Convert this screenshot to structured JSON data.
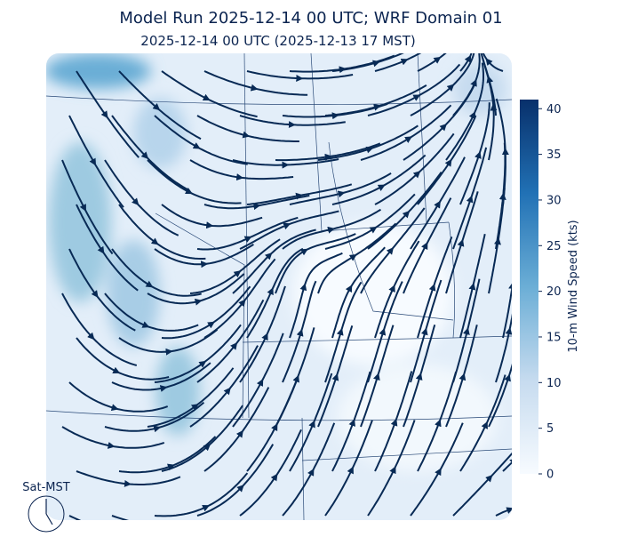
{
  "title": "Model Run 2025-12-14 00 UTC; WRF Domain 01",
  "subtitle": "2025-12-14 00 UTC  (2025-12-13 17 MST)",
  "colorbar": {
    "label": "10-m Wind Speed (kts)",
    "lim": [
      0,
      41
    ],
    "ticks": [
      0,
      5,
      10,
      15,
      20,
      25,
      30,
      35,
      40
    ]
  },
  "clock": {
    "label": "Sat-MST"
  }
}
